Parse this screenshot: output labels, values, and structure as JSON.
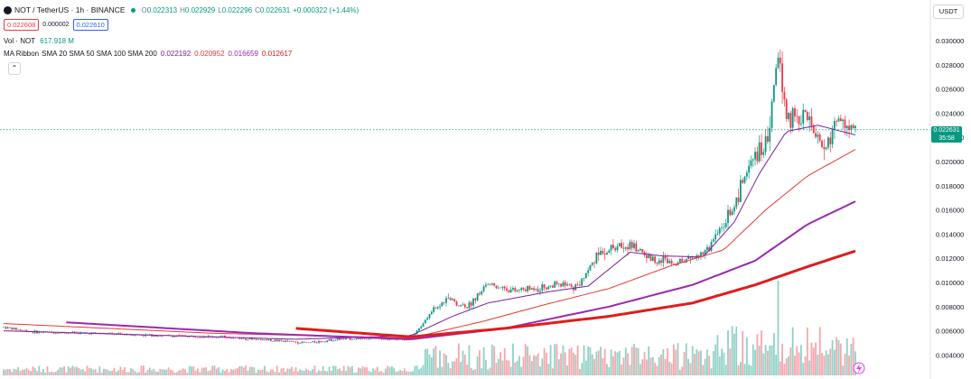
{
  "header": {
    "symbol": "NOT / TetherUS · 1h · BINANCE",
    "o_label": "O",
    "o": "0.022313",
    "h_label": "H",
    "h": "0.022929",
    "l_label": "L",
    "l": "0.022296",
    "c_label": "C",
    "c": "0.022631",
    "change": "+0.000322 (+1.44%)",
    "bid": "0.022608",
    "spread": "0.000002",
    "ask": "0.022610"
  },
  "vol_legend": {
    "label": "Vol · NOT",
    "value": "617.918 M"
  },
  "ma_legend": {
    "label": "MA Ribbon",
    "settings": "SMA 20 SMA 50 SMA 100 SMA 200",
    "values": [
      "0.022192",
      "0.020952",
      "0.016659",
      "0.012617"
    ]
  },
  "currency_button": "USDT",
  "collapse_icon": "chevron-up-icon",
  "price_tag": {
    "price": "0.022631",
    "countdown": "35:58"
  },
  "colors": {
    "up": "#089981",
    "down": "#f23645",
    "ma20": "#7b1fa2",
    "ma50": "#e53935",
    "ma100": "#9c27b0",
    "ma200": "#e01c1c"
  },
  "chart_data": {
    "type": "candlestick",
    "y_axis_ticks": [
      "0.030000",
      "0.028000",
      "0.026000",
      "0.024000",
      "0.022000",
      "0.020000",
      "0.018000",
      "0.016000",
      "0.014000",
      "0.012000",
      "0.010000",
      "0.008000",
      "0.006000",
      "0.004000"
    ],
    "ylim": [
      0.0035,
      0.0305
    ],
    "grid": false,
    "waypoints": [
      {
        "i": 0,
        "p": 0.0063
      },
      {
        "i": 15,
        "p": 0.0059
      },
      {
        "i": 45,
        "p": 0.0058
      },
      {
        "i": 75,
        "p": 0.0056
      },
      {
        "i": 105,
        "p": 0.0055
      },
      {
        "i": 130,
        "p": 0.0052
      },
      {
        "i": 145,
        "p": 0.005
      },
      {
        "i": 160,
        "p": 0.0053
      },
      {
        "i": 178,
        "p": 0.0054
      },
      {
        "i": 195,
        "p": 0.0053
      },
      {
        "i": 205,
        "p": 0.0075
      },
      {
        "i": 212,
        "p": 0.0086
      },
      {
        "i": 222,
        "p": 0.008
      },
      {
        "i": 232,
        "p": 0.0099
      },
      {
        "i": 245,
        "p": 0.0093
      },
      {
        "i": 262,
        "p": 0.0097
      },
      {
        "i": 275,
        "p": 0.0097
      },
      {
        "i": 285,
        "p": 0.0125
      },
      {
        "i": 300,
        "p": 0.0132
      },
      {
        "i": 310,
        "p": 0.012
      },
      {
        "i": 325,
        "p": 0.0117
      },
      {
        "i": 338,
        "p": 0.0128
      },
      {
        "i": 350,
        "p": 0.0165
      },
      {
        "i": 358,
        "p": 0.02
      },
      {
        "i": 366,
        "p": 0.0218
      },
      {
        "i": 371,
        "p": 0.029
      },
      {
        "i": 375,
        "p": 0.0235
      },
      {
        "i": 384,
        "p": 0.024
      },
      {
        "i": 392,
        "p": 0.021
      },
      {
        "i": 401,
        "p": 0.0233
      },
      {
        "i": 408,
        "p": 0.0226
      }
    ],
    "n_candles": 409,
    "sma20_path": [
      {
        "i": 0,
        "p": 0.006
      },
      {
        "i": 140,
        "p": 0.0053
      },
      {
        "i": 195,
        "p": 0.0056
      },
      {
        "i": 215,
        "p": 0.0072
      },
      {
        "i": 232,
        "p": 0.0083
      },
      {
        "i": 260,
        "p": 0.0092
      },
      {
        "i": 280,
        "p": 0.0097
      },
      {
        "i": 300,
        "p": 0.0125
      },
      {
        "i": 315,
        "p": 0.0122
      },
      {
        "i": 335,
        "p": 0.0121
      },
      {
        "i": 350,
        "p": 0.015
      },
      {
        "i": 362,
        "p": 0.019
      },
      {
        "i": 375,
        "p": 0.0225
      },
      {
        "i": 390,
        "p": 0.023
      },
      {
        "i": 408,
        "p": 0.0222
      }
    ],
    "sma50_path": [
      {
        "i": 0,
        "p": 0.0066
      },
      {
        "i": 100,
        "p": 0.0058
      },
      {
        "i": 195,
        "p": 0.0054
      },
      {
        "i": 230,
        "p": 0.0068
      },
      {
        "i": 260,
        "p": 0.0082
      },
      {
        "i": 290,
        "p": 0.0095
      },
      {
        "i": 320,
        "p": 0.0114
      },
      {
        "i": 345,
        "p": 0.0127
      },
      {
        "i": 365,
        "p": 0.016
      },
      {
        "i": 385,
        "p": 0.0188
      },
      {
        "i": 408,
        "p": 0.021
      }
    ],
    "sma100_path": [
      {
        "i": 30,
        "p": 0.0067
      },
      {
        "i": 120,
        "p": 0.0058
      },
      {
        "i": 195,
        "p": 0.0053
      },
      {
        "i": 240,
        "p": 0.0062
      },
      {
        "i": 290,
        "p": 0.008
      },
      {
        "i": 330,
        "p": 0.0098
      },
      {
        "i": 360,
        "p": 0.0118
      },
      {
        "i": 385,
        "p": 0.0148
      },
      {
        "i": 408,
        "p": 0.0167
      }
    ],
    "sma200_path": [
      {
        "i": 140,
        "p": 0.0062
      },
      {
        "i": 195,
        "p": 0.0055
      },
      {
        "i": 240,
        "p": 0.0062
      },
      {
        "i": 290,
        "p": 0.0072
      },
      {
        "i": 330,
        "p": 0.0083
      },
      {
        "i": 360,
        "p": 0.0098
      },
      {
        "i": 385,
        "p": 0.0113
      },
      {
        "i": 408,
        "p": 0.0126
      }
    ]
  }
}
